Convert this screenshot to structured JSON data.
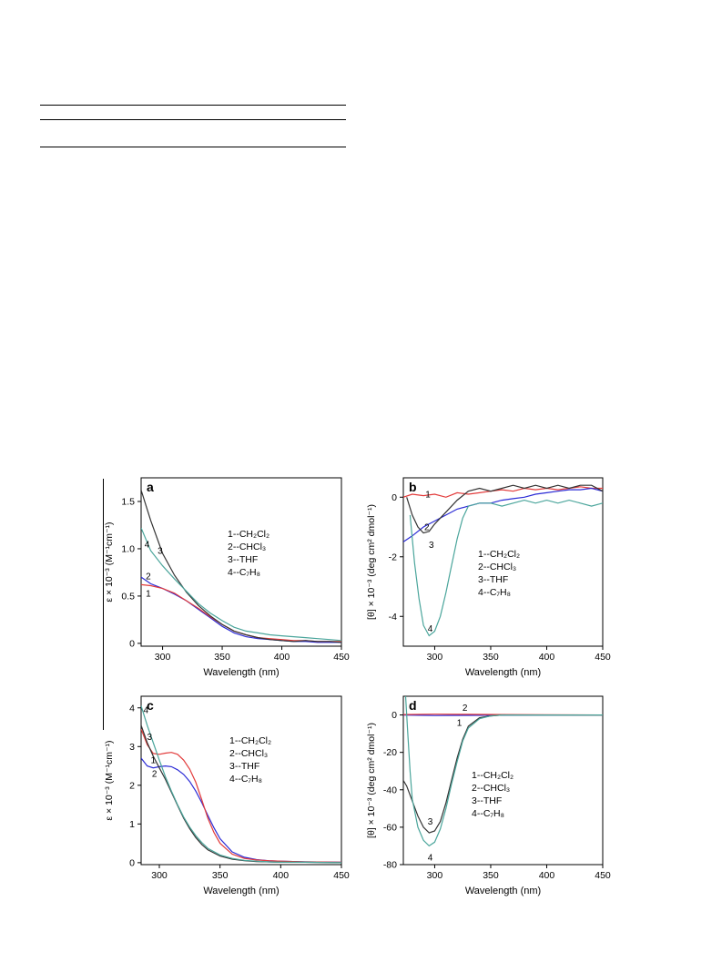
{
  "chart_data": [
    {
      "panel": "a",
      "type": "line",
      "xlabel": "Wavelength (nm)",
      "ylabel": "ε × 10⁻³ (M⁻¹cm⁻¹)",
      "xlim": [
        282,
        450
      ],
      "ylim": [
        -0.03,
        1.75
      ],
      "xticks": [
        300,
        350,
        400,
        450
      ],
      "yticks": [
        0,
        0.5,
        1.0,
        1.5
      ],
      "ytick_labels": [
        "0",
        "0.5",
        "1.0",
        "1.5"
      ],
      "legend": [
        "1--CH₂Cl₂",
        "2--CHCl₃",
        "3--THF",
        "4--C₇H₈"
      ],
      "legend_placement": "middle-right",
      "series": [
        {
          "label": "1",
          "color": "#2b2bd6",
          "x": [
            282,
            290,
            300,
            310,
            320,
            330,
            340,
            350,
            360,
            370,
            380,
            390,
            400,
            410,
            420,
            430,
            440,
            450
          ],
          "y": [
            0.7,
            0.63,
            0.58,
            0.52,
            0.45,
            0.36,
            0.27,
            0.18,
            0.11,
            0.07,
            0.05,
            0.04,
            0.03,
            0.02,
            0.02,
            0.01,
            0.01,
            0.01
          ]
        },
        {
          "label": "2",
          "color": "#e23b3b",
          "x": [
            282,
            290,
            300,
            310,
            320,
            330,
            340,
            350,
            360,
            370,
            380,
            390,
            400,
            410,
            420,
            430,
            440,
            450
          ],
          "y": [
            0.62,
            0.61,
            0.58,
            0.53,
            0.45,
            0.37,
            0.28,
            0.2,
            0.13,
            0.09,
            0.06,
            0.05,
            0.04,
            0.03,
            0.03,
            0.02,
            0.02,
            0.02
          ]
        },
        {
          "label": "3",
          "color": "#333333",
          "x": [
            282,
            290,
            300,
            310,
            320,
            330,
            340,
            350,
            360,
            370,
            380,
            390,
            400,
            410,
            420,
            430,
            440,
            450
          ],
          "y": [
            1.62,
            1.3,
            0.95,
            0.72,
            0.54,
            0.4,
            0.29,
            0.2,
            0.13,
            0.09,
            0.06,
            0.04,
            0.03,
            0.02,
            0.03,
            0.02,
            0.02,
            0.01
          ]
        },
        {
          "label": "4",
          "color": "#4aa59b",
          "x": [
            282,
            290,
            300,
            310,
            320,
            330,
            340,
            350,
            360,
            370,
            380,
            390,
            400,
            410,
            420,
            430,
            440,
            450
          ],
          "y": [
            1.22,
            0.98,
            0.82,
            0.68,
            0.55,
            0.42,
            0.32,
            0.24,
            0.17,
            0.13,
            0.11,
            0.09,
            0.08,
            0.07,
            0.06,
            0.05,
            0.04,
            0.03
          ]
        }
      ],
      "curve_labels": [
        {
          "text": "1",
          "x": 288,
          "y": 0.53
        },
        {
          "text": "2",
          "x": 288,
          "y": 0.71
        },
        {
          "text": "3",
          "x": 298,
          "y": 0.98
        },
        {
          "text": "4",
          "x": 287,
          "y": 1.05
        }
      ]
    },
    {
      "panel": "b",
      "type": "line",
      "xlabel": "Wavelength (nm)",
      "ylabel": "[θ] × 10⁻³ (deg cm² dmol⁻¹)",
      "xlim": [
        272,
        450
      ],
      "ylim": [
        -5.0,
        0.65
      ],
      "xticks": [
        300,
        350,
        400,
        450
      ],
      "yticks": [
        0,
        -2,
        -4
      ],
      "ytick_labels": [
        "0",
        "-2",
        "-4"
      ],
      "legend": [
        "1--CH₂Cl₂",
        "2--CHCl₃",
        "3--THF",
        "4--C₇H₈"
      ],
      "legend_placement": "middle-right",
      "series": [
        {
          "label": "1",
          "color": "#e23b3b",
          "x": [
            272,
            280,
            290,
            300,
            310,
            320,
            330,
            340,
            350,
            360,
            370,
            380,
            390,
            400,
            410,
            420,
            430,
            440,
            450
          ],
          "y": [
            0.0,
            0.1,
            0.05,
            0.1,
            0.0,
            0.15,
            0.1,
            0.15,
            0.2,
            0.25,
            0.2,
            0.3,
            0.25,
            0.3,
            0.25,
            0.3,
            0.35,
            0.3,
            0.3
          ]
        },
        {
          "label": "2",
          "color": "#2b2bd6",
          "x": [
            272,
            280,
            290,
            300,
            310,
            320,
            330,
            340,
            350,
            360,
            370,
            380,
            390,
            400,
            410,
            420,
            430,
            440,
            450
          ],
          "y": [
            -1.5,
            -1.3,
            -1.0,
            -0.8,
            -0.6,
            -0.4,
            -0.3,
            -0.2,
            -0.2,
            -0.1,
            -0.05,
            0.0,
            0.1,
            0.15,
            0.2,
            0.25,
            0.25,
            0.3,
            0.2
          ]
        },
        {
          "label": "3",
          "color": "#333333",
          "x": [
            275,
            280,
            285,
            290,
            295,
            300,
            310,
            320,
            330,
            340,
            350,
            360,
            370,
            380,
            390,
            400,
            410,
            420,
            430,
            440,
            450
          ],
          "y": [
            0.0,
            -0.6,
            -1.0,
            -1.2,
            -1.15,
            -0.9,
            -0.5,
            -0.1,
            0.2,
            0.3,
            0.2,
            0.3,
            0.4,
            0.3,
            0.4,
            0.3,
            0.4,
            0.3,
            0.4,
            0.4,
            0.2
          ]
        },
        {
          "label": "4",
          "color": "#4aa59b",
          "x": [
            278,
            282,
            286,
            290,
            295,
            300,
            305,
            310,
            315,
            320,
            325,
            330,
            340,
            350,
            360,
            370,
            380,
            390,
            400,
            410,
            420,
            430,
            440,
            450
          ],
          "y": [
            -0.6,
            -2.2,
            -3.4,
            -4.3,
            -4.65,
            -4.5,
            -4.0,
            -3.2,
            -2.3,
            -1.4,
            -0.7,
            -0.3,
            -0.2,
            -0.2,
            -0.3,
            -0.2,
            -0.1,
            -0.2,
            -0.1,
            -0.2,
            -0.1,
            -0.2,
            -0.3,
            -0.2
          ]
        }
      ],
      "curve_labels": [
        {
          "text": "1",
          "x": 294,
          "y": 0.1
        },
        {
          "text": "2",
          "x": 293,
          "y": -1.0
        },
        {
          "text": "3",
          "x": 297,
          "y": -1.6
        },
        {
          "text": "4",
          "x": 296,
          "y": -4.4
        }
      ]
    },
    {
      "panel": "c",
      "type": "line",
      "xlabel": "Wavelength (nm)",
      "ylabel": "ε × 10⁻³ (M⁻¹cm⁻¹)",
      "xlim": [
        285,
        450
      ],
      "ylim": [
        -0.05,
        4.3
      ],
      "xticks": [
        300,
        350,
        400,
        450
      ],
      "yticks": [
        0,
        1,
        2,
        3,
        4
      ],
      "ytick_labels": [
        "0",
        "1",
        "2",
        "3",
        "4"
      ],
      "legend": [
        "1--CH₂Cl₂",
        "2--CHCl₃",
        "3--THF",
        "4--C₇H₈"
      ],
      "legend_placement": "middle-right",
      "series": [
        {
          "label": "1",
          "color": "#2b2bd6",
          "x": [
            285,
            290,
            295,
            300,
            305,
            310,
            315,
            320,
            325,
            330,
            335,
            340,
            345,
            350,
            360,
            370,
            380,
            390,
            400,
            420,
            450
          ],
          "y": [
            2.7,
            2.5,
            2.45,
            2.48,
            2.5,
            2.48,
            2.4,
            2.28,
            2.1,
            1.85,
            1.55,
            1.22,
            0.9,
            0.62,
            0.28,
            0.14,
            0.08,
            0.05,
            0.04,
            0.02,
            0.01
          ]
        },
        {
          "label": "2",
          "color": "#e23b3b",
          "x": [
            285,
            290,
            295,
            300,
            305,
            310,
            315,
            320,
            325,
            330,
            335,
            340,
            345,
            350,
            360,
            370,
            380,
            390,
            400,
            420,
            450
          ],
          "y": [
            3.45,
            3.05,
            2.82,
            2.8,
            2.83,
            2.85,
            2.8,
            2.65,
            2.42,
            2.08,
            1.62,
            1.15,
            0.78,
            0.5,
            0.22,
            0.11,
            0.07,
            0.05,
            0.04,
            0.02,
            0.01
          ]
        },
        {
          "label": "3",
          "color": "#333333",
          "x": [
            285,
            290,
            295,
            300,
            305,
            310,
            315,
            320,
            325,
            330,
            335,
            340,
            350,
            360,
            370,
            380,
            390,
            400,
            420,
            450
          ],
          "y": [
            3.55,
            3.1,
            2.75,
            2.45,
            2.15,
            1.82,
            1.48,
            1.15,
            0.88,
            0.65,
            0.47,
            0.33,
            0.17,
            0.09,
            0.05,
            0.03,
            0.02,
            0.01,
            0.01,
            0.0
          ]
        },
        {
          "label": "4",
          "color": "#4aa59b",
          "x": [
            285,
            290,
            295,
            300,
            305,
            310,
            315,
            320,
            325,
            330,
            335,
            340,
            350,
            360,
            370,
            380,
            390,
            400,
            420,
            450
          ],
          "y": [
            4.05,
            3.55,
            3.1,
            2.65,
            2.22,
            1.85,
            1.5,
            1.18,
            0.92,
            0.7,
            0.52,
            0.37,
            0.2,
            0.11,
            0.06,
            0.04,
            0.02,
            0.01,
            0.01,
            0.0
          ]
        }
      ],
      "curve_labels": [
        {
          "text": "1",
          "x": 295,
          "y": 2.65
        },
        {
          "text": "2",
          "x": 296,
          "y": 2.3
        },
        {
          "text": "3",
          "x": 292,
          "y": 3.25
        },
        {
          "text": "4",
          "x": 289,
          "y": 3.95
        }
      ]
    },
    {
      "panel": "d",
      "type": "line",
      "xlabel": "Wavelength (nm)",
      "ylabel": "[θ] × 10⁻³ (deg cm² dmol⁻¹)",
      "xlim": [
        272,
        450
      ],
      "ylim": [
        -80,
        10
      ],
      "xticks": [
        300,
        350,
        400,
        450
      ],
      "yticks": [
        0,
        -20,
        -40,
        -60,
        -80
      ],
      "ytick_labels": [
        "0",
        "-20",
        "-40",
        "-60",
        "-80"
      ],
      "legend": [
        "1--CH₂Cl₂",
        "2--CHCl₃",
        "3--THF",
        "4--C₇H₈"
      ],
      "legend_placement": "middle-right",
      "series": [
        {
          "label": "1",
          "color": "#2b2bd6",
          "x": [
            272,
            300,
            330,
            360,
            400,
            450
          ],
          "y": [
            0.0,
            -0.3,
            -0.2,
            -0.1,
            0.0,
            0.0
          ]
        },
        {
          "label": "2",
          "color": "#e23b3b",
          "x": [
            272,
            300,
            330,
            360,
            400,
            450
          ],
          "y": [
            0.2,
            0.4,
            0.3,
            0.2,
            0.1,
            0.0
          ]
        },
        {
          "label": "3",
          "color": "#333333",
          "x": [
            272,
            275,
            280,
            285,
            290,
            295,
            300,
            305,
            310,
            315,
            320,
            325,
            330,
            340,
            350,
            360,
            380,
            400,
            450
          ],
          "y": [
            -35,
            -38,
            -46,
            -54,
            -60,
            -63,
            -62,
            -57,
            -47,
            -35,
            -23,
            -13,
            -6,
            -1.5,
            -0.5,
            0,
            0,
            0,
            0
          ]
        },
        {
          "label": "4",
          "color": "#4aa59b",
          "x": [
            274,
            276,
            278,
            280,
            285,
            290,
            295,
            300,
            305,
            310,
            315,
            320,
            325,
            330,
            340,
            350,
            360,
            380,
            400,
            450
          ],
          "y": [
            10,
            -10,
            -30,
            -45,
            -60,
            -67,
            -70,
            -68,
            -61,
            -50,
            -37,
            -25,
            -14,
            -7,
            -2,
            -0.5,
            0,
            0,
            0,
            0
          ]
        }
      ],
      "curve_labels": [
        {
          "text": "1",
          "x": 322,
          "y": -4
        },
        {
          "text": "2",
          "x": 327,
          "y": 4
        },
        {
          "text": "3",
          "x": 296,
          "y": -57
        },
        {
          "text": "4",
          "x": 296,
          "y": -76
        }
      ]
    }
  ]
}
